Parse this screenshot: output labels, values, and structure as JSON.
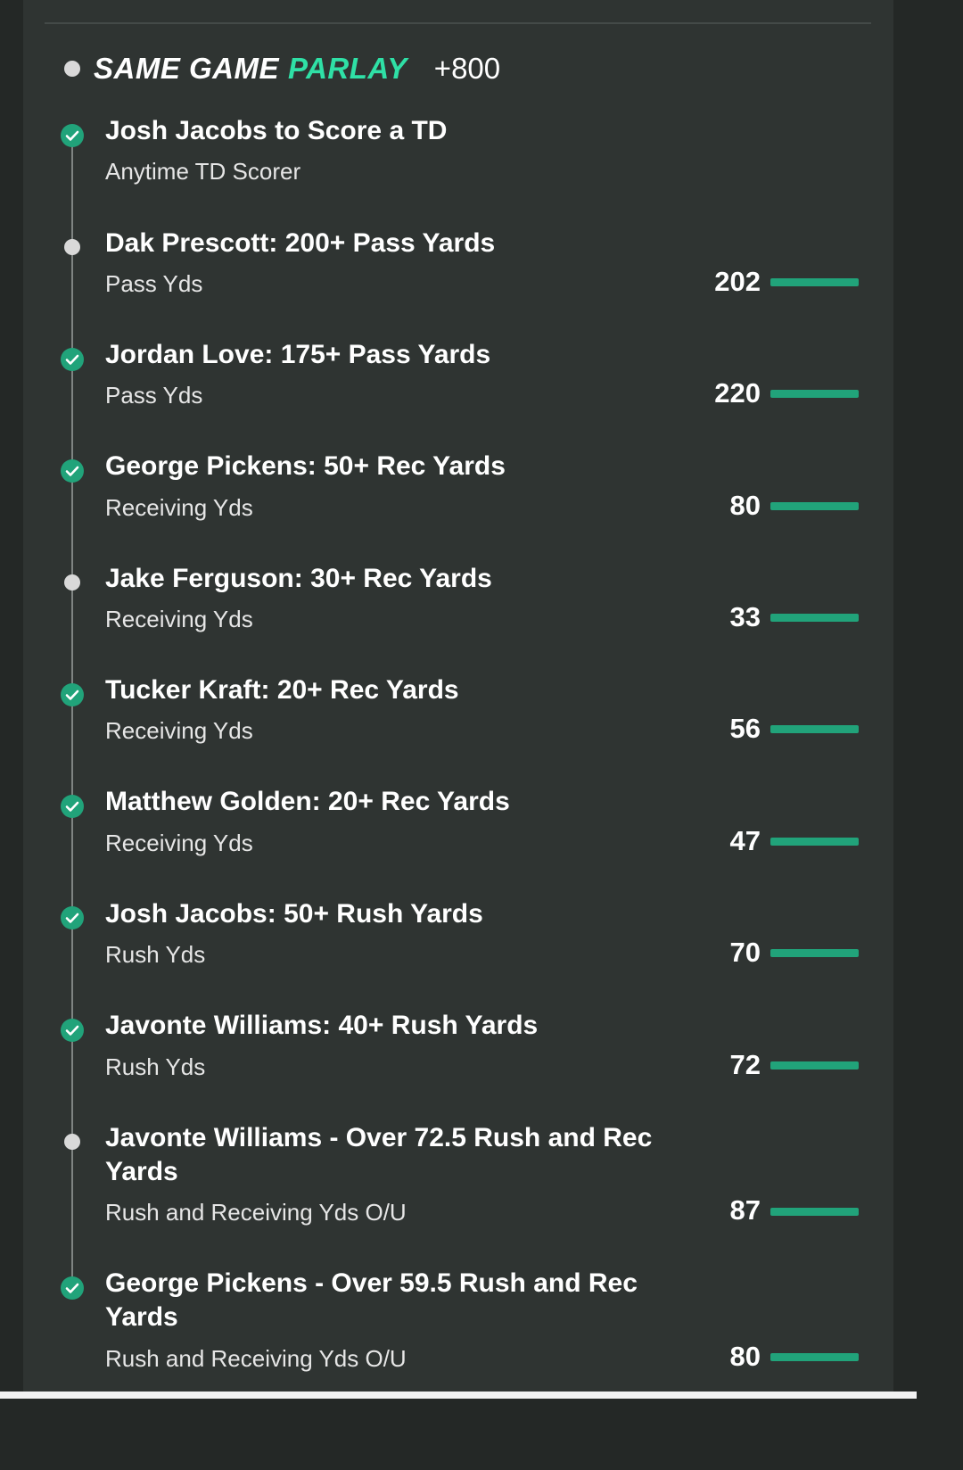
{
  "header": {
    "title_part1": "SAME GAME",
    "title_part2": "PARLAY",
    "odds": "+800"
  },
  "colors": {
    "accent": "#2fe0a6",
    "won": "#21a37a",
    "background": "#2f3432"
  },
  "legs": [
    {
      "title": "Josh Jacobs to Score a TD",
      "market": "Anytime TD Scorer",
      "value": "",
      "status": "won",
      "icon": "check-circle-icon",
      "progress": null
    },
    {
      "title": "Dak Prescott: 200+ Pass Yards",
      "market": "Pass Yds",
      "value": "202",
      "status": "pending",
      "icon": "dot-icon",
      "progress": 1.0
    },
    {
      "title": "Jordan Love: 175+ Pass Yards",
      "market": "Pass Yds",
      "value": "220",
      "status": "won",
      "icon": "check-circle-icon",
      "progress": 1.0
    },
    {
      "title": "George Pickens: 50+ Rec Yards",
      "market": "Receiving Yds",
      "value": "80",
      "status": "won",
      "icon": "check-circle-icon",
      "progress": 1.0
    },
    {
      "title": "Jake Ferguson: 30+ Rec Yards",
      "market": "Receiving Yds",
      "value": "33",
      "status": "pending",
      "icon": "dot-icon",
      "progress": 1.0
    },
    {
      "title": "Tucker Kraft: 20+ Rec Yards",
      "market": "Receiving Yds",
      "value": "56",
      "status": "won",
      "icon": "check-circle-icon",
      "progress": 1.0
    },
    {
      "title": "Matthew Golden: 20+ Rec Yards",
      "market": "Receiving Yds",
      "value": "47",
      "status": "won",
      "icon": "check-circle-icon",
      "progress": 1.0
    },
    {
      "title": "Josh Jacobs: 50+ Rush Yards",
      "market": "Rush Yds",
      "value": "70",
      "status": "won",
      "icon": "check-circle-icon",
      "progress": 1.0
    },
    {
      "title": "Javonte Williams: 40+ Rush Yards",
      "market": "Rush Yds",
      "value": "72",
      "status": "won",
      "icon": "check-circle-icon",
      "progress": 1.0
    },
    {
      "title": "Javonte Williams - Over 72.5 Rush and Rec Yards",
      "market": "Rush and Receiving Yds O/U",
      "value": "87",
      "status": "pending",
      "icon": "dot-icon",
      "progress": 1.0
    },
    {
      "title": "George Pickens - Over 59.5 Rush and Rec Yards",
      "market": "Rush and Receiving Yds O/U",
      "value": "80",
      "status": "won",
      "icon": "check-circle-icon",
      "progress": 1.0
    }
  ]
}
